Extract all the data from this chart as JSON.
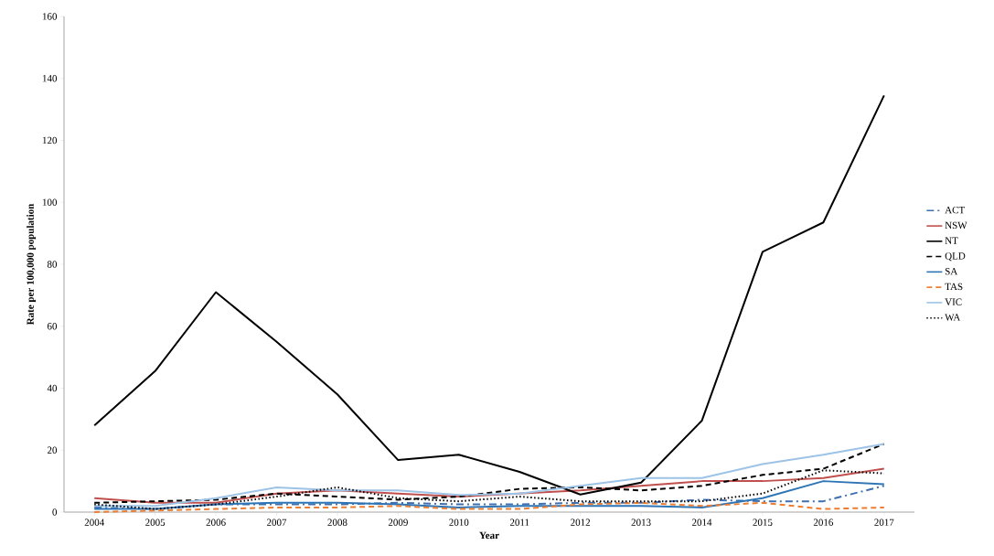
{
  "chart_data": {
    "type": "line",
    "xlabel": "Year",
    "ylabel": "Rate per 100,000 population",
    "categories": [
      "2004",
      "2005",
      "2006",
      "2007",
      "2008",
      "2009",
      "2010",
      "2011",
      "2012",
      "2013",
      "2014",
      "2015",
      "2016",
      "2017"
    ],
    "ylim": [
      0,
      160
    ],
    "yticks": [
      0,
      20,
      40,
      60,
      80,
      100,
      120,
      140,
      160
    ],
    "grid": false,
    "legend": "right",
    "marker": "none",
    "series": [
      {
        "name": "ACT",
        "color": "#3e6fb0",
        "line_style": "dashdot",
        "values": [
          1.5,
          1,
          2.5,
          2.5,
          2.5,
          3,
          2.5,
          2.5,
          3,
          3,
          4,
          3.5,
          3.5,
          8.5
        ]
      },
      {
        "name": "NSW",
        "color": "#c0504d",
        "line_style": "solid",
        "values": [
          4.5,
          3,
          3,
          6,
          7,
          6,
          5,
          6,
          7,
          8.5,
          10,
          10,
          11,
          14
        ]
      },
      {
        "name": "NT",
        "color": "#000000",
        "line_style": "solid",
        "values": [
          28,
          45.5,
          71,
          55,
          38,
          16.8,
          18.5,
          13,
          5.7,
          9.5,
          29.5,
          84,
          93.5,
          134.5
        ]
      },
      {
        "name": "QLD",
        "color": "#000000",
        "line_style": "dashed",
        "values": [
          3,
          3.5,
          4,
          6,
          5,
          4,
          5,
          7.5,
          8,
          7,
          8.5,
          12,
          14,
          22
        ]
      },
      {
        "name": "SA",
        "color": "#2e75b6",
        "line_style": "solid",
        "values": [
          1,
          1,
          2.5,
          3,
          3,
          2.5,
          1.5,
          2,
          2,
          2,
          1.5,
          4.5,
          10,
          9
        ]
      },
      {
        "name": "TAS",
        "color": "#ed7d31",
        "line_style": "dashed",
        "values": [
          0,
          0.5,
          1,
          1.5,
          1.5,
          2,
          1,
          1,
          2.5,
          3,
          2,
          3,
          1,
          1.5
        ]
      },
      {
        "name": "VIC",
        "color": "#9dc3e6",
        "line_style": "solid",
        "values": [
          2,
          2,
          4.5,
          8,
          7,
          7,
          5.5,
          6,
          8.5,
          11,
          11,
          15.5,
          18.5,
          22
        ]
      },
      {
        "name": "WA",
        "color": "#000000",
        "line_style": "dotted",
        "values": [
          2.5,
          1,
          2.5,
          5,
          8,
          4.5,
          3.5,
          5,
          3.5,
          3.5,
          3.5,
          6,
          13.5,
          12.5
        ]
      }
    ]
  }
}
